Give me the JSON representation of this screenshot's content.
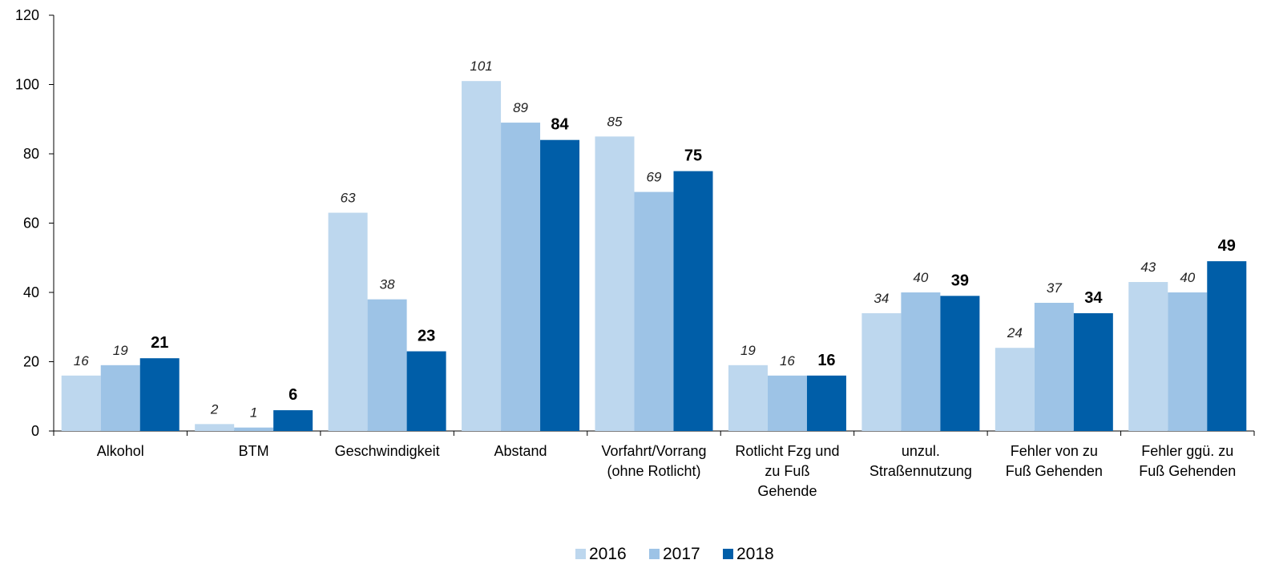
{
  "chart_data": {
    "type": "bar",
    "categories": [
      "Alkohol",
      "BTM",
      "Geschwindigkeit",
      "Abstand",
      "Vorfahrt/Vorrang\n(ohne Rotlicht)",
      "Rotlicht Fzg und\nzu Fuß\nGehende",
      "unzul.\nStraßennutzung",
      "Fehler von zu\nFuß Gehenden",
      "Fehler ggü. zu\nFuß Gehenden"
    ],
    "series": [
      {
        "name": "2016",
        "color": "#bdd7ee",
        "values": [
          16,
          2,
          63,
          101,
          85,
          19,
          34,
          24,
          43
        ]
      },
      {
        "name": "2017",
        "color": "#9dc3e6",
        "values": [
          19,
          1,
          38,
          89,
          69,
          16,
          40,
          37,
          40
        ]
      },
      {
        "name": "2018",
        "color": "#005ea8",
        "values": [
          21,
          6,
          23,
          84,
          75,
          16,
          39,
          34,
          49
        ]
      }
    ],
    "ylim": [
      0,
      120
    ],
    "yticks": [
      0,
      20,
      40,
      60,
      80,
      100,
      120
    ],
    "grid": false,
    "legend": "bottom"
  }
}
